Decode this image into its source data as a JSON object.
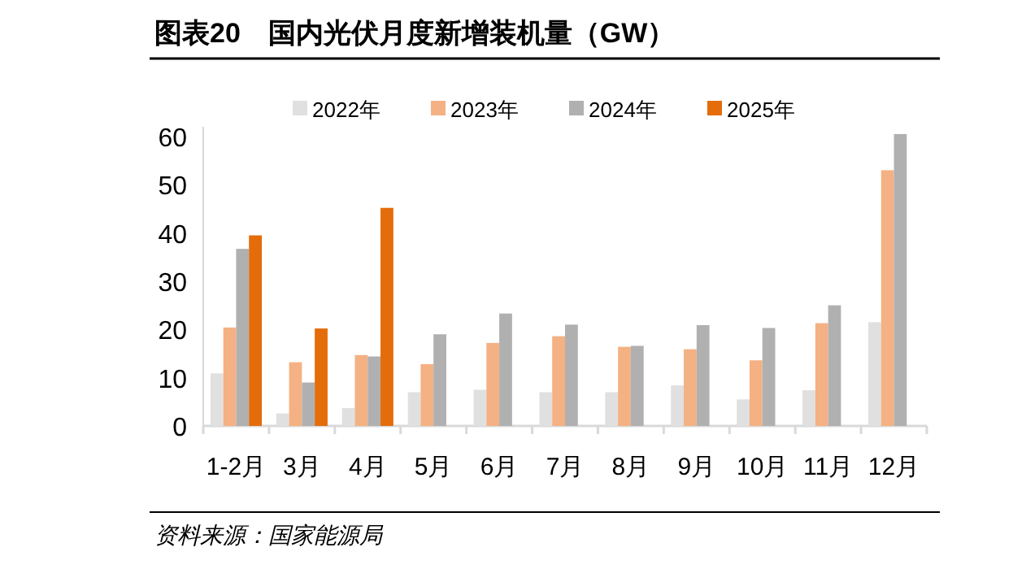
{
  "chart_data": {
    "type": "bar",
    "title": "图表20　国内光伏月度新增装机量（GW）",
    "categories": [
      "1-2月",
      "3月",
      "4月",
      "5月",
      "6月",
      "7月",
      "8月",
      "9月",
      "10月",
      "11月",
      "12月"
    ],
    "series": [
      {
        "name": "2022年",
        "color": "#e0e0e0",
        "values": [
          10.9,
          2.6,
          3.7,
          7.0,
          7.5,
          7.0,
          7.0,
          8.4,
          5.5,
          7.4,
          21.5
        ]
      },
      {
        "name": "2023年",
        "color": "#f4b183",
        "values": [
          20.4,
          13.2,
          14.7,
          12.8,
          17.2,
          18.6,
          16.4,
          15.9,
          13.6,
          21.3,
          53.0
        ]
      },
      {
        "name": "2024年",
        "color": "#b0b0b0",
        "values": [
          36.7,
          9.0,
          14.4,
          19.0,
          23.3,
          21.0,
          16.6,
          20.9,
          20.3,
          25.0,
          60.5
        ]
      },
      {
        "name": "2025年",
        "color": "#e46c0a",
        "values": [
          39.5,
          20.2,
          45.2,
          null,
          null,
          null,
          null,
          null,
          null,
          null,
          null
        ]
      }
    ],
    "ylim": [
      0,
      62
    ],
    "yticks": [
      0,
      10,
      20,
      30,
      40,
      50,
      60
    ],
    "grid": false,
    "legend": "top",
    "annotations": [
      "资料来源：国家能源局"
    ]
  }
}
